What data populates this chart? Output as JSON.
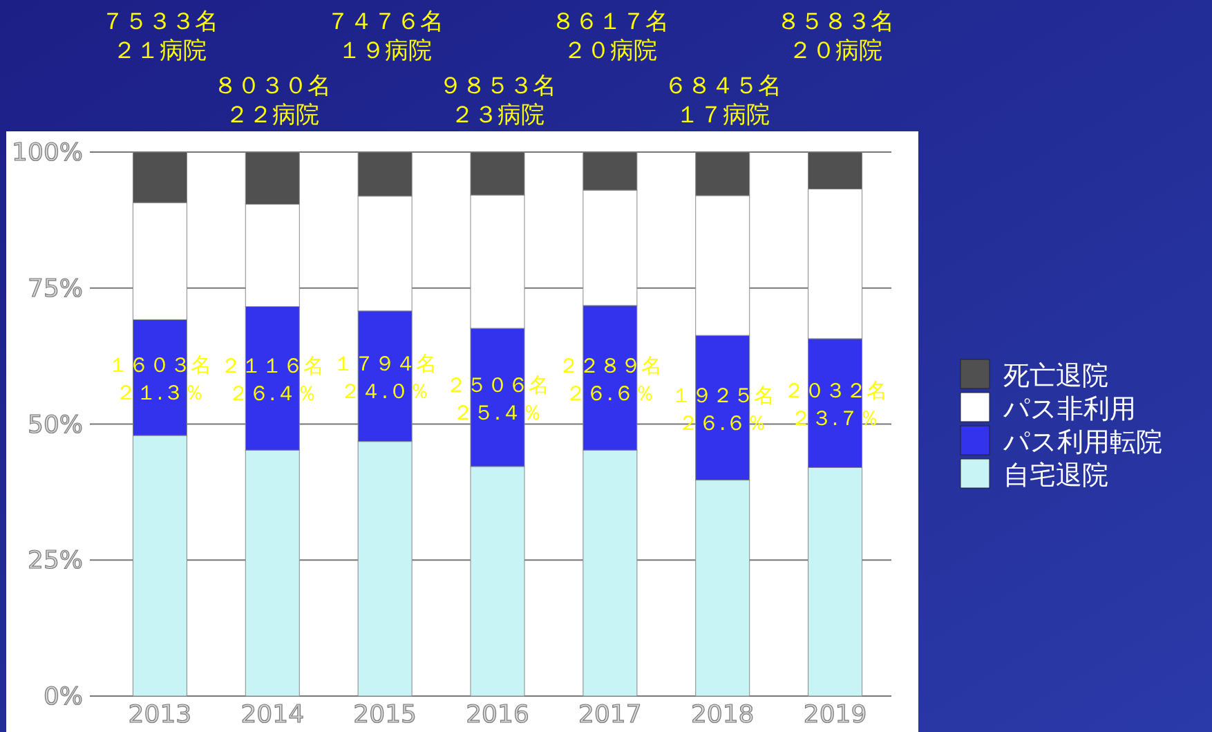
{
  "chart_data": {
    "type": "bar",
    "stacked": true,
    "categories": [
      "2013",
      "2014",
      "2015",
      "2016",
      "2017",
      "2018",
      "2019"
    ],
    "series": [
      {
        "name": "自宅退院",
        "color": "#c8f4f6",
        "values": [
          47.9,
          45.2,
          46.8,
          42.2,
          45.2,
          39.7,
          42.0
        ]
      },
      {
        "name": "パス利用転院",
        "color": "#3333ee",
        "values": [
          21.3,
          26.4,
          24.0,
          25.4,
          26.6,
          26.6,
          23.7
        ],
        "value_labels": [
          "１６０３名２１.３％",
          "２１１６名２６.４％",
          "１７９４名２４.０％",
          "２５０６名２５.４％",
          "２２８９名２６.６％",
          "１９２５名２６.６％",
          "２０３２名２３.７％"
        ]
      },
      {
        "name": "パス非利用",
        "color": "#ffffff",
        "values": [
          21.5,
          18.8,
          21.1,
          24.5,
          21.2,
          25.7,
          27.5
        ]
      },
      {
        "name": "死亡退院",
        "color": "#505050",
        "values": [
          9.3,
          9.6,
          8.1,
          7.9,
          7.0,
          8.0,
          6.8
        ]
      }
    ],
    "ylim": [
      0,
      100
    ],
    "yticks": [
      {
        "value": 0,
        "label": "0%"
      },
      {
        "value": 25,
        "label": "25%"
      },
      {
        "value": 50,
        "label": "50%"
      },
      {
        "value": 75,
        "label": "75%"
      },
      {
        "value": 100,
        "label": "100%"
      }
    ],
    "grid": "y",
    "legend": "right",
    "annotations": [
      "７５３３名２１病院",
      "８０３０名２２病院",
      "７４７６名１９病院",
      "９８５３名２３病院",
      "８６１７名２０病院",
      "６８４５名１７病院",
      "８５８３名２０病院"
    ]
  }
}
